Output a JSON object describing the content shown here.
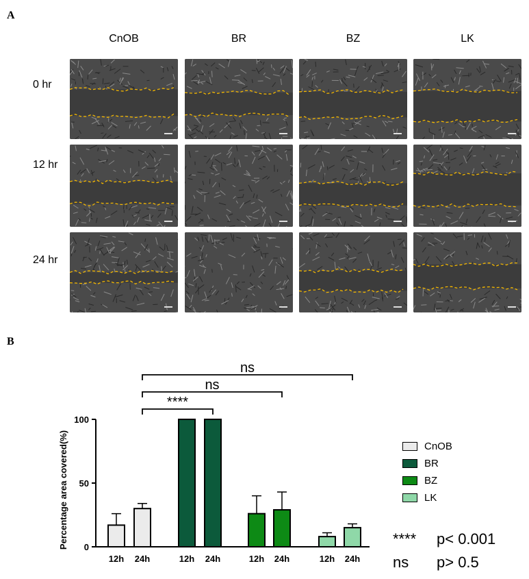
{
  "panel_a_label": "A",
  "panel_b_label": "B",
  "image_grid": {
    "columns": [
      "CnOB",
      "BR",
      "BZ",
      "LK"
    ],
    "rows": [
      "0 hr",
      "12 hr",
      "24 hr"
    ]
  },
  "chart_data": {
    "type": "bar",
    "ylabel": "Percentage area covered(%)",
    "xlabel": "",
    "ylim": [
      0,
      100
    ],
    "yticks": [
      0,
      50,
      100
    ],
    "x_tick_labels": [
      "12h",
      "24h",
      "12h",
      "24h",
      "12h",
      "24h",
      "12h",
      "24h"
    ],
    "groups": [
      {
        "name": "CnOB",
        "color": "#ebebeb",
        "values": [
          17,
          30
        ],
        "errors": [
          9,
          4
        ]
      },
      {
        "name": "BR",
        "color": "#0c5a3b",
        "values": [
          100,
          100
        ],
        "errors": [
          0,
          0
        ]
      },
      {
        "name": "BZ",
        "color": "#0d8a15",
        "values": [
          26,
          29
        ],
        "errors": [
          14,
          14
        ]
      },
      {
        "name": "LK",
        "color": "#8fd8a8",
        "values": [
          8,
          15
        ],
        "errors": [
          3,
          3
        ]
      }
    ],
    "comparisons": [
      {
        "from": "CnOB 24h",
        "to": "BR 24h",
        "label": "****"
      },
      {
        "from": "CnOB 24h",
        "to": "BZ 24h",
        "label": "ns"
      },
      {
        "from": "CnOB 24h",
        "to": "LK 24h",
        "label": "ns"
      }
    ],
    "significance_legend": [
      {
        "symbol": "****",
        "meaning": "p< 0.001"
      },
      {
        "symbol": "ns",
        "meaning": "p> 0.5"
      }
    ]
  }
}
